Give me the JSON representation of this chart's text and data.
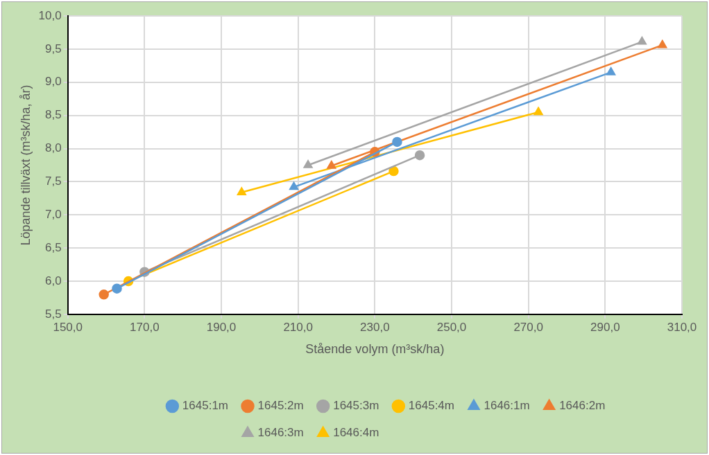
{
  "chart_data": {
    "type": "line",
    "xlabel": "Stående volym (m³sk/ha)",
    "ylabel": "Löpande tillväxt (m³sk/ha, år)",
    "xlim": [
      150,
      310
    ],
    "xticks": [
      {
        "value": 150,
        "label": "150,0"
      },
      {
        "value": 170,
        "label": "170,0"
      },
      {
        "value": 190,
        "label": "190,0"
      },
      {
        "value": 210,
        "label": "210,0"
      },
      {
        "value": 230,
        "label": "230,0"
      },
      {
        "value": 250,
        "label": "250,0"
      },
      {
        "value": 270,
        "label": "270,0"
      },
      {
        "value": 290,
        "label": "290,0"
      },
      {
        "value": 310,
        "label": "310,0"
      }
    ],
    "ylim": [
      5.5,
      10
    ],
    "yticks": [
      {
        "value": 5.5,
        "label": "5,5"
      },
      {
        "value": 6,
        "label": "6,0"
      },
      {
        "value": 6.5,
        "label": "6,5"
      },
      {
        "value": 7,
        "label": "7,0"
      },
      {
        "value": 7.5,
        "label": "7,5"
      },
      {
        "value": 8,
        "label": "8,0"
      },
      {
        "value": 8.5,
        "label": "8,5"
      },
      {
        "value": 9,
        "label": "9,0"
      },
      {
        "value": 9.5,
        "label": "9,5"
      },
      {
        "value": 10,
        "label": "10,0"
      }
    ],
    "grid": true,
    "legend": "bottom",
    "line_style": "solid",
    "series": [
      {
        "name": "1645:1m",
        "color": "#5b9bd5",
        "marker": "circle",
        "x": [
          162.8,
          235.8
        ],
        "values": [
          5.89,
          8.1
        ]
      },
      {
        "name": "1645:2m",
        "color": "#ed7d31",
        "marker": "circle",
        "x": [
          159.4,
          230.0
        ],
        "values": [
          5.8,
          7.95
        ]
      },
      {
        "name": "1645:3m",
        "color": "#a5a5a5",
        "marker": "circle",
        "x": [
          170.0,
          241.7
        ],
        "values": [
          6.14,
          7.9
        ]
      },
      {
        "name": "1645:4m",
        "color": "#ffc000",
        "marker": "circle",
        "x": [
          165.8,
          234.9
        ],
        "values": [
          6.0,
          7.66
        ]
      },
      {
        "name": "1646:1m",
        "color": "#5b9bd5",
        "marker": "triangle",
        "x": [
          208.9,
          291.5
        ],
        "values": [
          7.42,
          9.15
        ]
      },
      {
        "name": "1646:2m",
        "color": "#ed7d31",
        "marker": "triangle",
        "x": [
          218.7,
          304.9
        ],
        "values": [
          7.74,
          9.56
        ]
      },
      {
        "name": "1646:3m",
        "color": "#a5a5a5",
        "marker": "triangle",
        "x": [
          212.6,
          299.6
        ],
        "values": [
          7.75,
          9.61
        ]
      },
      {
        "name": "1646:4m",
        "color": "#ffc000",
        "marker": "triangle",
        "x": [
          195.3,
          272.6
        ],
        "values": [
          7.34,
          8.55
        ]
      }
    ]
  }
}
